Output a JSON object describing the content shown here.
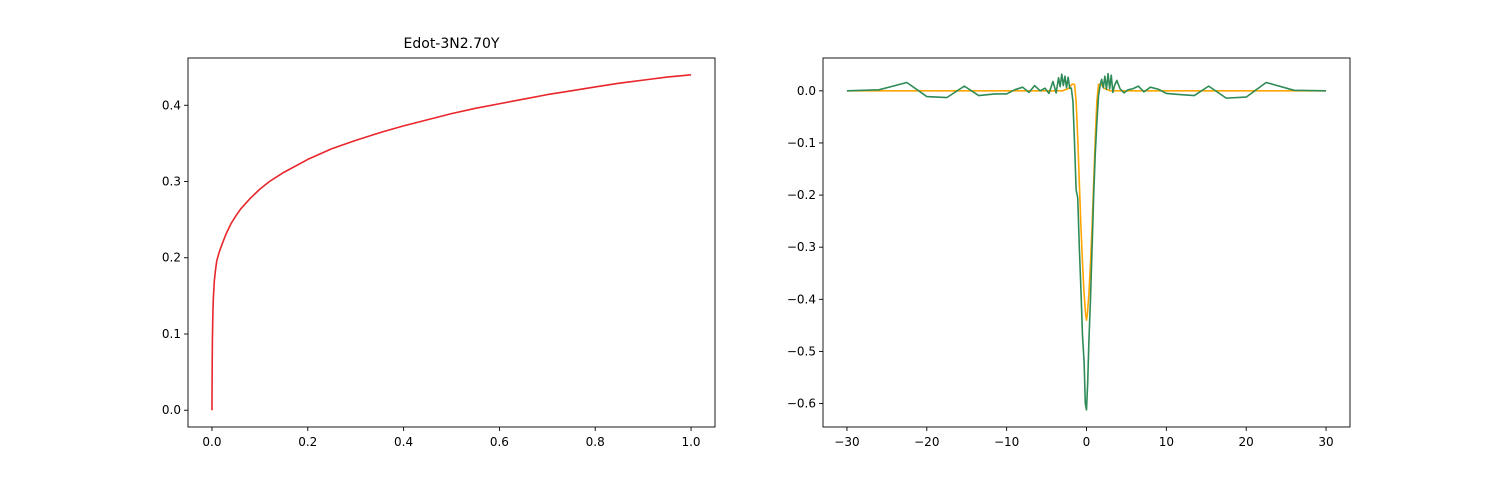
{
  "chart_data": [
    {
      "type": "line",
      "title": "Edot-3N2.70Y",
      "xlabel": "",
      "ylabel": "",
      "xlim": [
        -0.05,
        1.05
      ],
      "ylim": [
        -0.022,
        0.462
      ],
      "x_ticks": [
        {
          "value": 0.0,
          "label": "0.0"
        },
        {
          "value": 0.2,
          "label": "0.2"
        },
        {
          "value": 0.4,
          "label": "0.4"
        },
        {
          "value": 0.6,
          "label": "0.6"
        },
        {
          "value": 0.8,
          "label": "0.8"
        },
        {
          "value": 1.0,
          "label": "1.0"
        }
      ],
      "y_ticks": [
        {
          "value": 0.0,
          "label": "0.0"
        },
        {
          "value": 0.1,
          "label": "0.1"
        },
        {
          "value": 0.2,
          "label": "0.2"
        },
        {
          "value": 0.3,
          "label": "0.3"
        },
        {
          "value": 0.4,
          "label": "0.4"
        }
      ],
      "grid": false,
      "series": [
        {
          "color": "#e8262b",
          "x": [
            0,
            0.0005,
            0.001,
            0.002,
            0.003,
            0.005,
            0.007,
            0.01,
            0.015,
            0.02,
            0.03,
            0.04,
            0.05,
            0.06,
            0.08,
            0.1,
            0.12,
            0.15,
            0.2,
            0.25,
            0.3,
            0.35,
            0.4,
            0.45,
            0.5,
            0.55,
            0.6,
            0.65,
            0.7,
            0.75,
            0.8,
            0.85,
            0.9,
            0.95,
            1.0
          ],
          "y": [
            0,
            0.06,
            0.095,
            0.128,
            0.148,
            0.17,
            0.182,
            0.196,
            0.207,
            0.216,
            0.232,
            0.245,
            0.255,
            0.264,
            0.278,
            0.29,
            0.3,
            0.312,
            0.329,
            0.343,
            0.354,
            0.364,
            0.373,
            0.381,
            0.389,
            0.396,
            0.402,
            0.408,
            0.414,
            0.419,
            0.424,
            0.429,
            0.433,
            0.437,
            0.44
          ]
        }
      ]
    },
    {
      "type": "line",
      "title": "",
      "xlabel": "",
      "ylabel": "",
      "xlim": [
        -33,
        33
      ],
      "ylim": [
        -0.645,
        0.063
      ],
      "x_ticks": [
        {
          "value": -30,
          "label": "−30"
        },
        {
          "value": -20,
          "label": "−20"
        },
        {
          "value": -10,
          "label": "−10"
        },
        {
          "value": 0,
          "label": "0"
        },
        {
          "value": 10,
          "label": "10"
        },
        {
          "value": 20,
          "label": "20"
        },
        {
          "value": 30,
          "label": "30"
        }
      ],
      "y_ticks": [
        {
          "value": 0.0,
          "label": "0.0"
        },
        {
          "value": -0.1,
          "label": "−0.1"
        },
        {
          "value": -0.2,
          "label": "−0.2"
        },
        {
          "value": -0.3,
          "label": "−0.3"
        },
        {
          "value": -0.4,
          "label": "−0.4"
        },
        {
          "value": -0.5,
          "label": "−0.5"
        },
        {
          "value": -0.6,
          "label": "−0.6"
        }
      ],
      "grid": false,
      "series": [
        {
          "color": "#ffa500",
          "x": [
            -30,
            -3,
            -2.2,
            -1.8,
            -1.5,
            -1.3,
            -1.1,
            -0.9,
            -0.7,
            -0.5,
            -0.3,
            -0.1,
            0,
            0.1,
            0.3,
            0.5,
            0.7,
            0.9,
            1.1,
            1.3,
            1.5,
            1.8,
            2.2,
            3,
            30
          ],
          "y": [
            0,
            0,
            0.005,
            0.013,
            0.012,
            -0.02,
            -0.09,
            -0.175,
            -0.26,
            -0.33,
            -0.39,
            -0.43,
            -0.44,
            -0.43,
            -0.39,
            -0.33,
            -0.26,
            -0.175,
            -0.09,
            -0.02,
            0.012,
            0.013,
            0.005,
            0,
            0
          ]
        },
        {
          "color": "#2e8b57",
          "x": [
            -30,
            -26,
            -22.5,
            -20,
            -17.5,
            -15.3,
            -13.5,
            -11.5,
            -10,
            -9,
            -8,
            -7.2,
            -6.5,
            -5.8,
            -5.2,
            -4.7,
            -4.2,
            -3.8,
            -3.5,
            -3.3,
            -3.1,
            -2.9,
            -2.7,
            -2.5,
            -2.3,
            -2.1,
            -1.9,
            -1.7,
            -1.5,
            -1.3,
            -1.1,
            -0.9,
            -0.7,
            -0.5,
            -0.3,
            -0.15,
            0,
            0.15,
            0.3,
            0.5,
            0.7,
            0.9,
            1.1,
            1.3,
            1.5,
            1.7,
            1.9,
            2.1,
            2.3,
            2.5,
            2.7,
            2.9,
            3.1,
            3.3,
            3.5,
            3.8,
            4.2,
            4.7,
            5.2,
            5.8,
            6.5,
            7.2,
            8,
            9,
            10,
            11.5,
            13.5,
            15.3,
            17.5,
            20,
            22.5,
            26,
            30
          ],
          "y": [
            0,
            0.002,
            0.016,
            -0.011,
            -0.013,
            0.009,
            -0.009,
            -0.006,
            -0.006,
            0.002,
            0.007,
            -0.003,
            0.01,
            0.0,
            0.005,
            -0.005,
            0.018,
            -0.004,
            0.025,
            0.008,
            0.032,
            0.01,
            0.028,
            0.006,
            0.026,
            0.005,
            0.005,
            -0.02,
            -0.1,
            -0.19,
            -0.205,
            -0.3,
            -0.38,
            -0.47,
            -0.52,
            -0.6,
            -0.612,
            -0.56,
            -0.48,
            -0.4,
            -0.3,
            -0.2,
            -0.12,
            -0.06,
            -0.01,
            0.01,
            0.022,
            0.006,
            0.028,
            0.003,
            0.033,
            0.004,
            0.03,
            -0.003,
            0.01,
            0.02,
            0.004,
            -0.004,
            0.002,
            0.004,
            0.009,
            -0.002,
            0.007,
            0.003,
            -0.005,
            -0.007,
            -0.009,
            0.009,
            -0.014,
            -0.012,
            0.016,
            0.001,
            0
          ]
        }
      ]
    }
  ]
}
